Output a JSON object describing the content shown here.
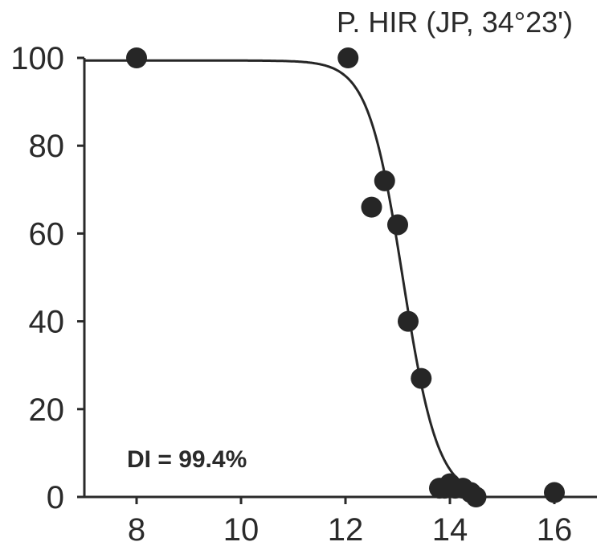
{
  "chart_data": {
    "type": "scatter",
    "title": "P. HIR (JP, 34°23')",
    "xlabel": "",
    "ylabel": "",
    "xlim": [
      7,
      17
    ],
    "ylim": [
      0,
      100
    ],
    "xticks": [
      8,
      10,
      12,
      14,
      16
    ],
    "yticks": [
      0,
      20,
      40,
      60,
      80,
      100
    ],
    "xtick_labels": [
      "8",
      "10",
      "12",
      "14",
      "16"
    ],
    "ytick_labels": [
      "0",
      "20",
      "40",
      "60",
      "80",
      "100"
    ],
    "grid": false,
    "points": [
      {
        "x": 8.0,
        "y": 100
      },
      {
        "x": 12.05,
        "y": 100
      },
      {
        "x": 12.5,
        "y": 66
      },
      {
        "x": 12.75,
        "y": 72
      },
      {
        "x": 13.0,
        "y": 62
      },
      {
        "x": 13.2,
        "y": 40
      },
      {
        "x": 13.45,
        "y": 27
      },
      {
        "x": 13.8,
        "y": 2
      },
      {
        "x": 13.9,
        "y": 2
      },
      {
        "x": 14.0,
        "y": 3
      },
      {
        "x": 14.1,
        "y": 2
      },
      {
        "x": 14.25,
        "y": 2
      },
      {
        "x": 14.4,
        "y": 1
      },
      {
        "x": 14.5,
        "y": 0
      },
      {
        "x": 16.0,
        "y": 1
      }
    ],
    "fit_curve": {
      "type": "logistic",
      "midpoint": 13.1,
      "upper": 99.4
    },
    "annotation": "DI = 99.4%",
    "colors": {
      "marker": "#262626",
      "line": "#262626",
      "axis": "#2a2a2a"
    }
  }
}
